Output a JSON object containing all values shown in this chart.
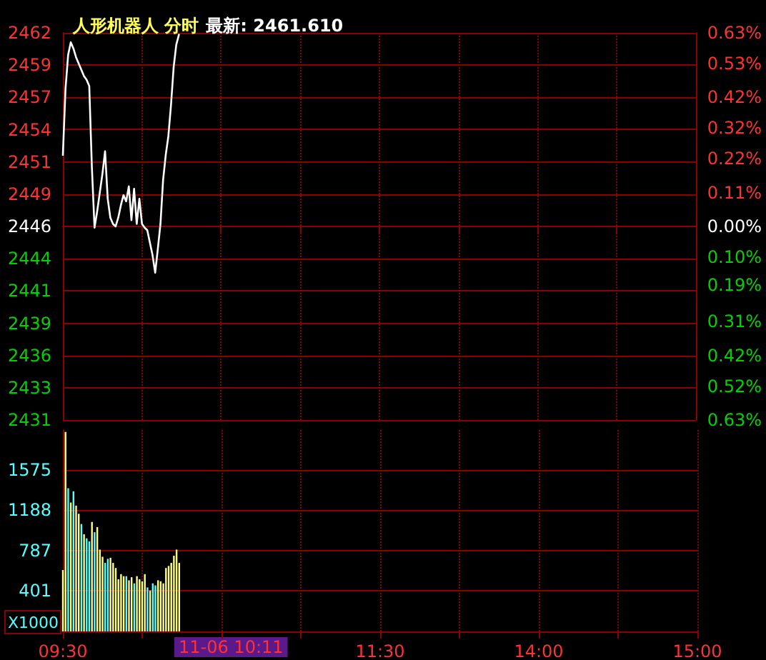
{
  "chart_data": [
    {
      "type": "line",
      "title": "人形机器人 分时",
      "subtitle": "最新: 2461.610",
      "tick_labels": "y",
      "grid": true,
      "line_style": "solid",
      "categories": [
        null,
        null,
        null,
        null,
        null,
        null,
        null,
        null,
        null,
        null,
        null,
        null,
        null,
        null,
        null,
        null,
        null,
        null,
        null,
        null,
        null,
        null,
        null,
        null,
        null,
        null,
        null,
        null,
        null,
        null,
        null,
        null,
        null,
        null,
        null,
        null,
        null,
        null,
        null,
        null,
        null,
        null,
        null,
        null,
        null,
        null,
        null,
        null,
        null,
        null,
        null,
        null,
        null,
        null,
        null,
        null,
        null,
        null,
        null,
        null,
        null,
        null,
        null,
        null,
        null,
        null,
        null,
        null,
        null,
        null,
        null,
        null,
        null,
        null,
        null,
        null,
        null,
        null,
        null,
        null,
        null,
        null,
        null,
        null,
        null,
        null,
        null,
        null,
        null,
        null,
        null,
        null,
        null,
        null,
        null,
        null,
        null,
        null,
        null,
        null,
        null,
        null,
        null,
        null,
        null,
        null,
        null,
        null,
        null,
        null,
        null,
        null,
        null,
        null,
        null,
        null,
        null,
        null,
        null,
        null,
        null,
        null,
        null,
        null,
        null,
        null,
        null,
        null,
        null,
        null,
        null,
        null,
        null,
        null,
        null,
        null,
        null,
        null,
        null,
        null,
        null,
        null,
        null,
        null,
        null,
        null,
        null,
        null,
        null,
        null,
        null,
        null,
        null,
        null,
        null,
        null,
        null,
        null,
        null,
        null,
        null,
        null,
        null,
        null,
        null,
        null,
        null,
        null,
        null,
        null,
        null,
        null,
        null,
        null,
        null,
        null,
        null,
        null,
        null,
        null,
        null,
        null,
        null,
        null,
        null,
        null,
        null,
        null,
        null,
        null,
        null,
        null,
        null,
        null,
        null,
        null,
        null,
        null,
        null,
        null,
        null,
        null,
        null,
        null,
        null,
        null,
        null,
        null,
        null,
        null,
        null,
        null,
        null,
        null,
        null,
        null,
        null,
        null,
        null,
        null,
        null,
        null,
        null,
        null,
        null,
        null,
        null,
        null,
        null,
        null,
        null,
        null,
        null,
        null,
        null,
        null,
        null,
        null,
        null,
        null,
        null
      ],
      "ylim": [
        2430.85,
        2461.75
      ],
      "yticks": [
        {
          "value": 2430.85,
          "label": "2431"
        },
        {
          "value": 2433.425,
          "label": "2433"
        },
        {
          "value": 2436.0,
          "label": "2436"
        },
        {
          "value": 2438.575,
          "label": "2439"
        },
        {
          "value": 2441.15,
          "label": "2441"
        },
        {
          "value": 2443.725,
          "label": "2444"
        },
        {
          "value": 2446.3,
          "label": "2446"
        },
        {
          "value": 2448.875,
          "label": "2449"
        },
        {
          "value": 2451.45,
          "label": "2451"
        },
        {
          "value": 2454.025,
          "label": "2454"
        },
        {
          "value": 2456.6,
          "label": "2457"
        },
        {
          "value": 2459.175,
          "label": "2459"
        },
        {
          "value": 2461.75,
          "label": "2462"
        }
      ],
      "y2lim": [
        -0.63,
        0.63
      ],
      "y2ticks": [
        {
          "value": -0.63,
          "label": "0.63%"
        },
        {
          "value": -0.52,
          "label": "0.52%"
        },
        {
          "value": -0.42,
          "label": "0.42%"
        },
        {
          "value": -0.31,
          "label": "0.31%"
        },
        {
          "value": -0.19,
          "label": "0.19%"
        },
        {
          "value": -0.1,
          "label": "0.10%"
        },
        {
          "value": 0,
          "label": "0.00%"
        },
        {
          "value": 0.11,
          "label": "0.11%"
        },
        {
          "value": 0.22,
          "label": "0.22%"
        },
        {
          "value": 0.32,
          "label": "0.32%"
        },
        {
          "value": 0.42,
          "label": "0.42%"
        },
        {
          "value": 0.53,
          "label": "0.53%"
        },
        {
          "value": 0.63,
          "label": "0.63%"
        }
      ],
      "series": [
        {
          "color": "#ffffff",
          "values": [
            2452.0,
            2457.3,
            2460.0,
            2461.0,
            2460.5,
            2459.8,
            2459.3,
            2458.8,
            2458.3,
            2458.0,
            2457.5,
            2451.0,
            2446.2,
            2447.5,
            2449.0,
            2450.5,
            2452.3,
            2448.5,
            2447.0,
            2446.5,
            2446.3,
            2447.0,
            2448.0,
            2448.8,
            2448.3,
            2449.5,
            2446.8,
            2449.3,
            2446.5,
            2448.5,
            2446.5,
            2446.2,
            2446.0,
            2445.0,
            2444.0,
            2442.6,
            2444.5,
            2446.5,
            2450.0,
            2452.0,
            2453.5,
            2456.0,
            2459.0,
            2460.8,
            2461.6,
            null,
            null,
            null,
            null,
            null,
            null,
            null,
            null,
            null,
            null,
            null,
            null,
            null,
            null,
            null,
            null,
            null,
            null,
            null,
            null,
            null,
            null,
            null,
            null,
            null,
            null,
            null,
            null,
            null,
            null,
            null,
            null,
            null,
            null,
            null,
            null,
            null,
            null,
            null,
            null,
            null,
            null,
            null,
            null,
            null,
            null,
            null,
            null,
            null,
            null,
            null,
            null,
            null,
            null,
            null,
            null,
            null,
            null,
            null,
            null,
            null,
            null,
            null,
            null,
            null,
            null,
            null,
            null,
            null,
            null,
            null,
            null,
            null,
            null,
            null,
            null,
            null,
            null,
            null,
            null,
            null,
            null,
            null,
            null,
            null,
            null,
            null,
            null,
            null,
            null,
            null,
            null,
            null,
            null,
            null,
            null,
            null,
            null,
            null,
            null,
            null,
            null,
            null,
            null,
            null,
            null,
            null,
            null,
            null,
            null,
            null,
            null,
            null,
            null,
            null,
            null,
            null,
            null,
            null,
            null,
            null,
            null,
            null,
            null,
            null,
            null,
            null,
            null,
            null,
            null,
            null,
            null,
            null,
            null,
            null,
            null,
            null,
            null,
            null,
            null,
            null,
            null,
            null,
            null,
            null,
            null,
            null,
            null,
            null,
            null,
            null,
            null,
            null,
            null,
            null,
            null,
            null,
            null,
            null,
            null,
            null,
            null,
            null,
            null,
            null,
            null,
            null,
            null,
            null,
            null,
            null,
            null,
            null,
            null,
            null,
            null,
            null,
            null,
            null,
            null,
            null,
            null,
            null,
            null,
            null,
            null,
            null,
            null,
            null,
            null,
            null,
            null,
            null,
            null,
            null,
            null
          ]
        }
      ]
    },
    {
      "type": "bar",
      "ylabel": "X1000",
      "grid": true,
      "annotations": [
        "11-06 10:11"
      ],
      "categories": [
        "09:30",
        null,
        null,
        null,
        null,
        null,
        null,
        null,
        null,
        null,
        null,
        null,
        null,
        null,
        null,
        null,
        null,
        null,
        null,
        null,
        null,
        null,
        null,
        null,
        null,
        null,
        null,
        null,
        null,
        null,
        null,
        null,
        null,
        null,
        null,
        null,
        null,
        null,
        null,
        null,
        null,
        null,
        null,
        null,
        null,
        null,
        null,
        null,
        null,
        null,
        null,
        null,
        null,
        null,
        null,
        null,
        null,
        null,
        null,
        null,
        null,
        null,
        null,
        null,
        null,
        null,
        null,
        null,
        null,
        null,
        null,
        null,
        null,
        null,
        null,
        null,
        null,
        null,
        null,
        null,
        null,
        null,
        null,
        null,
        null,
        null,
        null,
        null,
        null,
        null,
        null,
        null,
        null,
        null,
        null,
        null,
        null,
        null,
        null,
        null,
        null,
        null,
        null,
        null,
        null,
        null,
        null,
        null,
        null,
        null,
        null,
        null,
        null,
        null,
        null,
        null,
        null,
        null,
        null,
        null,
        "11:30",
        null,
        null,
        null,
        null,
        null,
        null,
        null,
        null,
        null,
        null,
        null,
        null,
        null,
        null,
        null,
        null,
        null,
        null,
        null,
        null,
        null,
        null,
        null,
        null,
        null,
        null,
        null,
        null,
        null,
        null,
        null,
        null,
        null,
        null,
        null,
        null,
        null,
        null,
        null,
        null,
        null,
        null,
        null,
        null,
        null,
        null,
        null,
        null,
        null,
        null,
        null,
        null,
        null,
        null,
        null,
        null,
        null,
        null,
        null,
        "14:00",
        null,
        null,
        null,
        null,
        null,
        null,
        null,
        null,
        null,
        null,
        null,
        null,
        null,
        null,
        null,
        null,
        null,
        null,
        null,
        null,
        null,
        null,
        null,
        null,
        null,
        null,
        null,
        null,
        null,
        null,
        null,
        null,
        null,
        null,
        null,
        null,
        null,
        null,
        null,
        null,
        null,
        null,
        null,
        null,
        null,
        null,
        null,
        null,
        null,
        null,
        null,
        null,
        null,
        null,
        null,
        null,
        null,
        null,
        null,
        "15:00"
      ],
      "ylim": [
        0,
        1969
      ],
      "yticks": [
        401,
        787,
        1188,
        1575
      ],
      "values": [
        600,
        1950,
        1400,
        1260,
        1370,
        1230,
        1150,
        1050,
        950,
        910,
        880,
        1070,
        970,
        1020,
        800,
        730,
        670,
        710,
        720,
        670,
        620,
        510,
        560,
        540,
        540,
        500,
        530,
        470,
        540,
        510,
        490,
        560,
        430,
        400,
        470,
        450,
        500,
        490,
        470,
        620,
        640,
        670,
        740,
        800,
        670,
        null,
        null,
        null,
        null,
        null,
        null,
        null,
        null,
        null,
        null,
        null,
        null,
        null,
        null,
        null,
        null,
        null,
        null,
        null,
        null,
        null,
        null,
        null,
        null,
        null,
        null,
        null,
        null,
        null,
        null,
        null,
        null,
        null,
        null,
        null,
        null,
        null,
        null,
        null,
        null,
        null,
        null,
        null,
        null,
        null,
        null,
        null,
        null,
        null,
        null,
        null,
        null,
        null,
        null,
        null,
        null,
        null,
        null,
        null,
        null,
        null,
        null,
        null,
        null,
        null,
        null,
        null,
        null,
        null,
        null,
        null,
        null,
        null,
        null,
        null,
        null,
        null,
        null,
        null,
        null,
        null,
        null,
        null,
        null,
        null,
        null,
        null,
        null,
        null,
        null,
        null,
        null,
        null,
        null,
        null,
        null,
        null,
        null,
        null,
        null,
        null,
        null,
        null,
        null,
        null,
        null,
        null,
        null,
        null,
        null,
        null,
        null,
        null,
        null,
        null,
        null,
        null,
        null,
        null,
        null,
        null,
        null,
        null,
        null,
        null,
        null,
        null,
        null,
        null,
        null,
        null,
        null,
        null,
        null,
        null,
        null,
        null,
        null,
        null,
        null,
        null,
        null,
        null,
        null,
        null,
        null,
        null,
        null,
        null,
        null,
        null,
        null,
        null,
        null,
        null,
        null,
        null,
        null,
        null,
        null,
        null,
        null,
        null,
        null,
        null,
        null,
        null,
        null,
        null,
        null,
        null,
        null,
        null,
        null,
        null,
        null,
        null,
        null,
        null,
        null,
        null,
        null,
        null,
        null,
        null,
        null,
        null,
        null,
        null,
        null,
        null,
        null,
        null,
        null,
        null,
        null
      ],
      "colors": [
        "#ffff80",
        "#ffff80",
        "#54ffff",
        "#ffff80",
        "#54ffff",
        "#ffff80",
        "#ffff80",
        "#54ffff",
        "#ffff80",
        "#54ffff",
        "#54ffff",
        "#ffff80",
        "#54ffff",
        "#ffff80",
        "#ffff80",
        "#ffff80",
        "#54ffff",
        "#54ffff",
        "#ffff80",
        "#ffff80",
        "#ffff80",
        "#ffff80",
        "#ffff80",
        "#ffff80",
        "#54ffff",
        "#ffff80",
        "#ffff80",
        "#54ffff",
        "#ffff80",
        "#ffff80",
        "#ffff80",
        "#ffff80",
        "#54ffff",
        "#ffff80",
        "#54ffff",
        "#54ffff",
        "#ffff80",
        "#ffff80",
        "#ffff80",
        "#ffff80",
        "#ffff80",
        "#ffff80",
        "#ffff80",
        "#ffff80",
        "#ffff80",
        null,
        null,
        null,
        null,
        null,
        null,
        null,
        null,
        null,
        null,
        null,
        null,
        null,
        null,
        null,
        null,
        null,
        null,
        null,
        null,
        null,
        null,
        null,
        null,
        null,
        null,
        null,
        null,
        null,
        null,
        null,
        null,
        null,
        null,
        null,
        null,
        null,
        null,
        null,
        null,
        null,
        null,
        null,
        null,
        null,
        null,
        null,
        null,
        null,
        null,
        null,
        null,
        null,
        null,
        null,
        null,
        null,
        null,
        null,
        null,
        null,
        null,
        null,
        null,
        null,
        null,
        null,
        null,
        null,
        null,
        null,
        null,
        null,
        null,
        null,
        null,
        null,
        null,
        null,
        null,
        null,
        null,
        null,
        null,
        null,
        null,
        null,
        null,
        null,
        null,
        null,
        null,
        null,
        null,
        null,
        null,
        null,
        null,
        null,
        null,
        null,
        null,
        null,
        null,
        null,
        null,
        null,
        null,
        null,
        null,
        null,
        null,
        null,
        null,
        null,
        null,
        null,
        null,
        null,
        null,
        null,
        null,
        null,
        null,
        null,
        null,
        null,
        null,
        null,
        null,
        null,
        null,
        null,
        null,
        null,
        null,
        null,
        null,
        null,
        null,
        null,
        null,
        null,
        null,
        null,
        null,
        null,
        null,
        null,
        null,
        null,
        null,
        null,
        null,
        null,
        null,
        null,
        null,
        null,
        null,
        null,
        null,
        null,
        null,
        null,
        null,
        null,
        null,
        null,
        null,
        null,
        null,
        null,
        null,
        null,
        null,
        null,
        null,
        null,
        null,
        null,
        null,
        null,
        null,
        null,
        null,
        null,
        null,
        null,
        null,
        null,
        null,
        null,
        null,
        null,
        null
      ]
    }
  ]
}
